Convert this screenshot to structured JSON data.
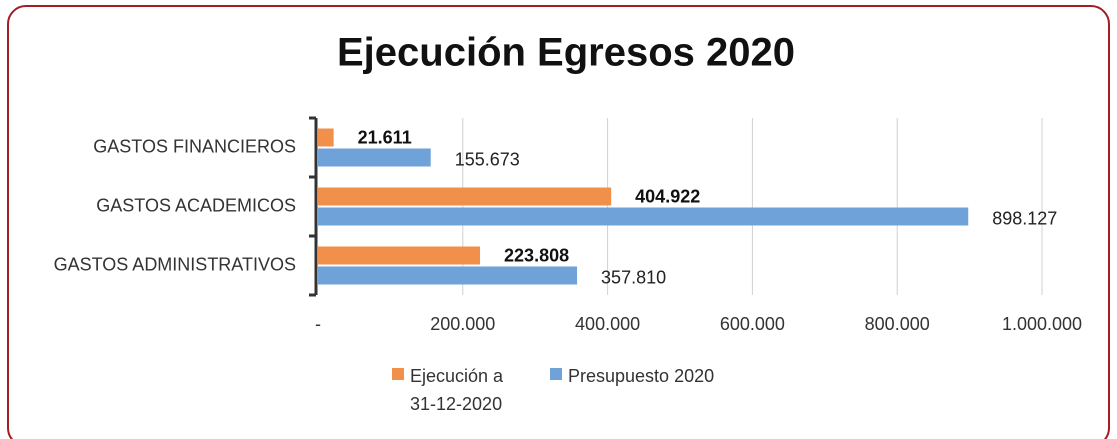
{
  "chart_data": {
    "type": "bar",
    "orientation": "horizontal",
    "title": "Ejecución Egresos 2020",
    "categories": [
      "GASTOS FINANCIEROS",
      "GASTOS ACADEMICOS",
      "GASTOS ADMINISTRATIVOS"
    ],
    "series": [
      {
        "name": "Ejecución a 31-12-2020",
        "color": "#f0904a",
        "values": [
          21611,
          404922,
          223808
        ],
        "value_labels": [
          "21.611",
          "404.922",
          "223.808"
        ]
      },
      {
        "name": "Presupuesto 2020",
        "color": "#6fa2d8",
        "values": [
          155673,
          898127,
          357810
        ],
        "value_labels": [
          "155.673",
          "898.127",
          "357.810"
        ]
      }
    ],
    "xlim": [
      0,
      1000000
    ],
    "xticks": [
      {
        "value": 0,
        "label": "-"
      },
      {
        "value": 200000,
        "label": "200.000"
      },
      {
        "value": 400000,
        "label": "400.000"
      },
      {
        "value": 600000,
        "label": "600.000"
      },
      {
        "value": 800000,
        "label": "800.000"
      },
      {
        "value": 1000000,
        "label": "1.000.000"
      }
    ],
    "grid": true,
    "legend": "bottom"
  }
}
